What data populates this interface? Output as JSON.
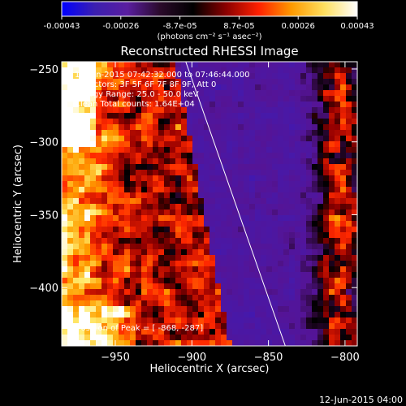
{
  "colorbar": {
    "tick_labels": [
      "-0.00043",
      "-0.00026",
      "-8.7e-05",
      "8.7e-05",
      "0.00026",
      "0.00043"
    ],
    "unit_label": "(photons cm⁻² s⁻¹ asec⁻²)",
    "colors": [
      "#0000ff",
      "#3b1fb0",
      "#5a1ea0",
      "#2a0a2a",
      "#000000",
      "#8a0000",
      "#ff2000",
      "#ff9a00",
      "#ffe060",
      "#ffffff"
    ]
  },
  "overlay": {
    "line1": "11-Jun-2015 07:42:32.000 to 07:46:44.000",
    "line2": "Detectors: 3F 5F 6F 7F 8F 9F, Att 0",
    "line3": "Energy Range: 25.0 - 50.0 keV",
    "line4": "Clean    Total counts: 1.64E+04",
    "peak": "Position of Peak = [ -868, -287]"
  },
  "footer": {
    "timestamp": "12-Jun-2015 04:00"
  },
  "chart_data": {
    "type": "heatmap",
    "title": "Reconstructed RHESSI Image",
    "xlabel": "Heliocentric X (arcsec)",
    "ylabel": "Heliocentric Y (arcsec)",
    "xlim": [
      -985,
      -792
    ],
    "ylim": [
      -440,
      -245
    ],
    "x_ticks": [
      -950,
      -900,
      -850,
      -800
    ],
    "y_ticks": [
      -250,
      -300,
      -350,
      -400
    ],
    "value_range": [
      -0.00043,
      0.00043
    ],
    "limb_line": {
      "x": [
        -904,
        -839
      ],
      "y": [
        -245,
        -440
      ]
    },
    "peak": {
      "x": -868,
      "y": -287
    }
  }
}
